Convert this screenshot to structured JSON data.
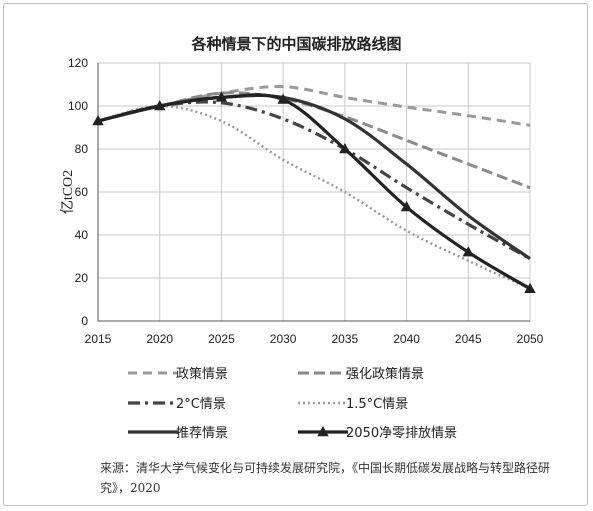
{
  "title": "各种情景下的中国碳排放路线图",
  "source_note": "来源：清华大学气候变化与可持续发展研究院，《中国长期低碳发展战略与转型路径研究》，2020",
  "chart_data": {
    "type": "line",
    "title": "各种情景下的中国碳排放路线图",
    "xlabel": "",
    "ylabel": "亿tCO2",
    "x": [
      2015,
      2020,
      2025,
      2030,
      2035,
      2040,
      2045,
      2050
    ],
    "xlim": [
      2015,
      2050
    ],
    "ylim": [
      0,
      120
    ],
    "yticks": [
      0,
      20,
      40,
      60,
      80,
      100,
      120
    ],
    "grid": true,
    "legend_position": "bottom",
    "series": [
      {
        "name": "政策情景",
        "style": "dashed-light",
        "color": "#9a9a9a",
        "points": [
          [
            2015,
            93
          ],
          [
            2020,
            100
          ],
          [
            2025,
            106
          ],
          [
            2030,
            109
          ],
          [
            2035,
            104
          ],
          [
            2040,
            99.5
          ],
          [
            2045,
            95.5
          ],
          [
            2050,
            91
          ]
        ]
      },
      {
        "name": "强化政策情景",
        "style": "dashed",
        "color": "#8a8a8a",
        "points": [
          [
            2015,
            93
          ],
          [
            2020,
            100
          ],
          [
            2025,
            106
          ],
          [
            2030,
            103.5
          ],
          [
            2035,
            95
          ],
          [
            2040,
            84
          ],
          [
            2045,
            73
          ],
          [
            2050,
            62
          ]
        ]
      },
      {
        "name": "2°C情景",
        "style": "dash-dot",
        "color": "#444444",
        "points": [
          [
            2015,
            93
          ],
          [
            2020,
            100
          ],
          [
            2025,
            101.5
          ],
          [
            2030,
            94
          ],
          [
            2035,
            80
          ],
          [
            2040,
            62
          ],
          [
            2045,
            45
          ],
          [
            2050,
            29
          ]
        ]
      },
      {
        "name": "1.5°C情景",
        "style": "dotted",
        "color": "#9a9a9a",
        "points": [
          [
            2015,
            93
          ],
          [
            2020,
            100
          ],
          [
            2025,
            93
          ],
          [
            2030,
            75
          ],
          [
            2035,
            60
          ],
          [
            2040,
            42
          ],
          [
            2045,
            28
          ],
          [
            2050,
            15
          ]
        ]
      },
      {
        "name": "推荐情景",
        "style": "solid",
        "color": "#333333",
        "points": [
          [
            2015,
            93
          ],
          [
            2020,
            100
          ],
          [
            2025,
            104
          ],
          [
            2030,
            104
          ],
          [
            2035,
            94
          ],
          [
            2040,
            73
          ],
          [
            2045,
            49
          ],
          [
            2050,
            29
          ]
        ]
      },
      {
        "name": "2050净零排放情景",
        "style": "solid-triangle",
        "color": "#222222",
        "points": [
          [
            2015,
            93
          ],
          [
            2020,
            100
          ],
          [
            2025,
            104
          ],
          [
            2030,
            103
          ],
          [
            2035,
            80
          ],
          [
            2040,
            53
          ],
          [
            2045,
            32
          ],
          [
            2050,
            15
          ]
        ]
      }
    ]
  }
}
